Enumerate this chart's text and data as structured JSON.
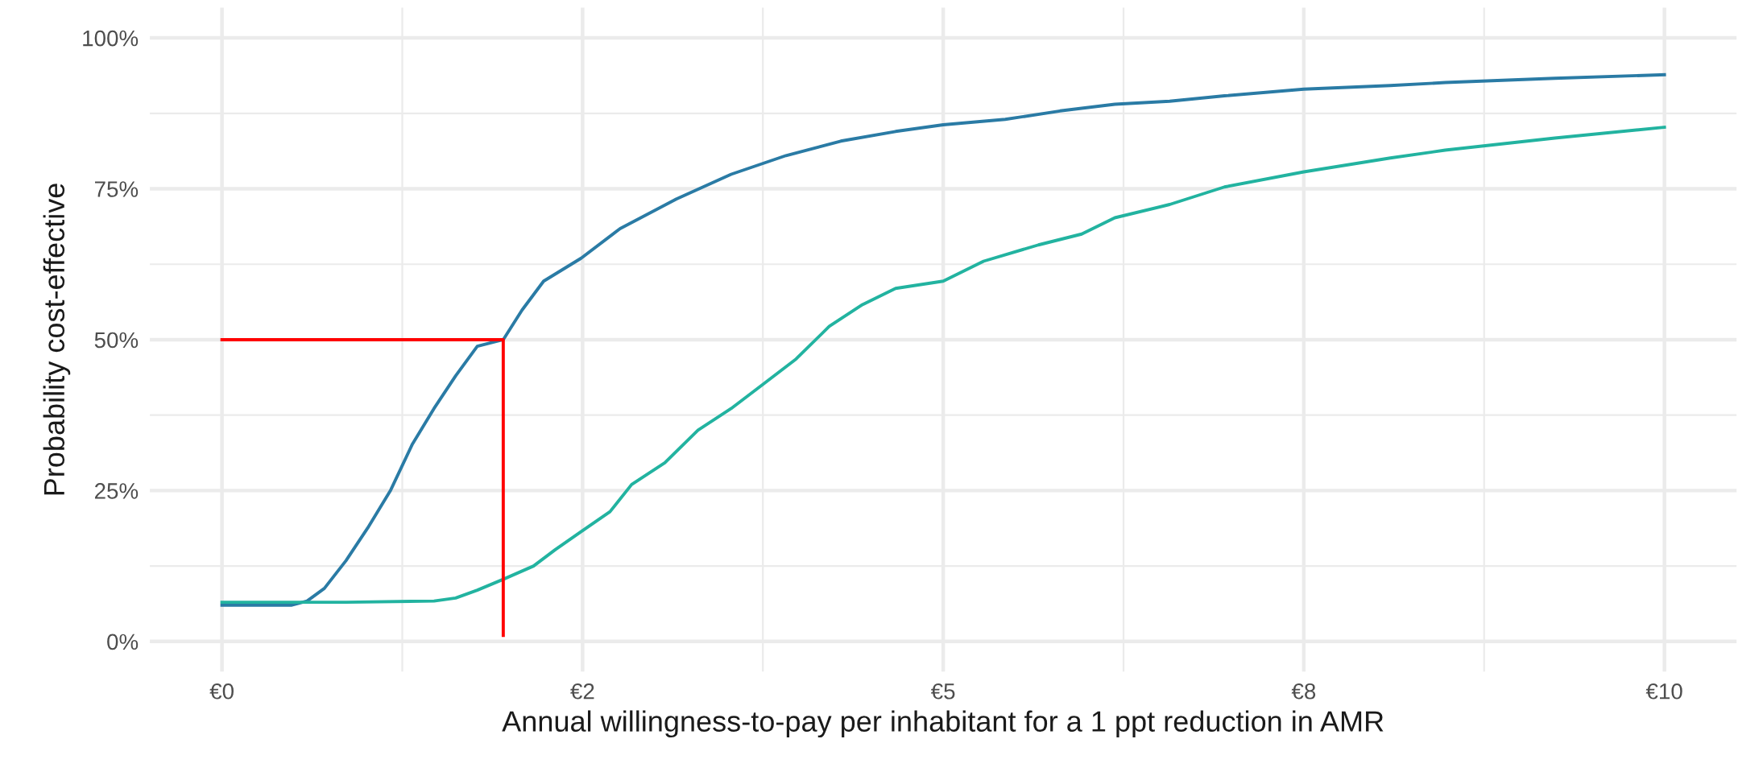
{
  "chart_data": {
    "type": "line",
    "xlabel": "Annual willingness-to-pay per inhabitant for a 1 ppt reduction in AMR",
    "ylabel": "Probability cost-effective",
    "xlim": [
      -0.5,
      10.5
    ],
    "ylim": [
      -5,
      105
    ],
    "xticks": [
      {
        "value": 0,
        "label": "€0"
      },
      {
        "value": 2.5,
        "label": "€2"
      },
      {
        "value": 5,
        "label": "€5"
      },
      {
        "value": 7.5,
        "label": "€8"
      },
      {
        "value": 10,
        "label": "€10"
      }
    ],
    "yticks": [
      {
        "value": 0,
        "label": "0%"
      },
      {
        "value": 25,
        "label": "25%"
      },
      {
        "value": 50,
        "label": "50%"
      },
      {
        "value": 75,
        "label": "75%"
      },
      {
        "value": 100,
        "label": "100%"
      }
    ],
    "grid": true,
    "line_style": "solid",
    "series": [
      {
        "color": "#2a7ba5",
        "x": [
          0,
          0.48,
          0.59,
          0.71,
          0.86,
          1.01,
          1.17,
          1.32,
          1.47,
          1.62,
          1.77,
          1.95,
          2.08,
          2.23,
          2.49,
          2.76,
          3.15,
          3.53,
          3.91,
          4.29,
          4.67,
          5.0,
          5.43,
          5.81,
          6.19,
          6.57,
          6.95,
          7.5,
          8.1,
          8.48,
          9.24,
          10
        ],
        "values": [
          6.0,
          6.0,
          6.7,
          8.8,
          13.4,
          18.8,
          25.1,
          32.7,
          38.6,
          44.0,
          48.9,
          50.0,
          54.9,
          59.7,
          63.5,
          68.4,
          73.3,
          77.4,
          80.5,
          82.9,
          84.5,
          85.6,
          86.5,
          87.9,
          89.0,
          89.5,
          90.4,
          91.5,
          92.1,
          92.6,
          93.3,
          93.9
        ]
      },
      {
        "color": "#22b3a0",
        "x": [
          0,
          0.86,
          1.47,
          1.62,
          1.77,
          1.95,
          2.16,
          2.31,
          2.49,
          2.69,
          2.84,
          3.07,
          3.3,
          3.53,
          3.75,
          3.98,
          4.21,
          4.44,
          4.67,
          5.0,
          5.28,
          5.66,
          5.96,
          6.19,
          6.57,
          6.95,
          7.5,
          8.1,
          8.48,
          9.24,
          10
        ],
        "values": [
          6.5,
          6.5,
          6.7,
          7.2,
          8.5,
          10.3,
          12.5,
          15.2,
          18.2,
          21.5,
          26.0,
          29.6,
          35.0,
          38.6,
          42.6,
          46.8,
          52.2,
          55.8,
          58.5,
          59.7,
          63.0,
          65.7,
          67.5,
          70.2,
          72.4,
          75.3,
          77.8,
          80.1,
          81.4,
          83.4,
          85.2
        ]
      },
      {
        "color": "#ff0000",
        "x": [
          0,
          1.95,
          1.95
        ],
        "values": [
          50,
          50,
          1
        ]
      }
    ]
  }
}
